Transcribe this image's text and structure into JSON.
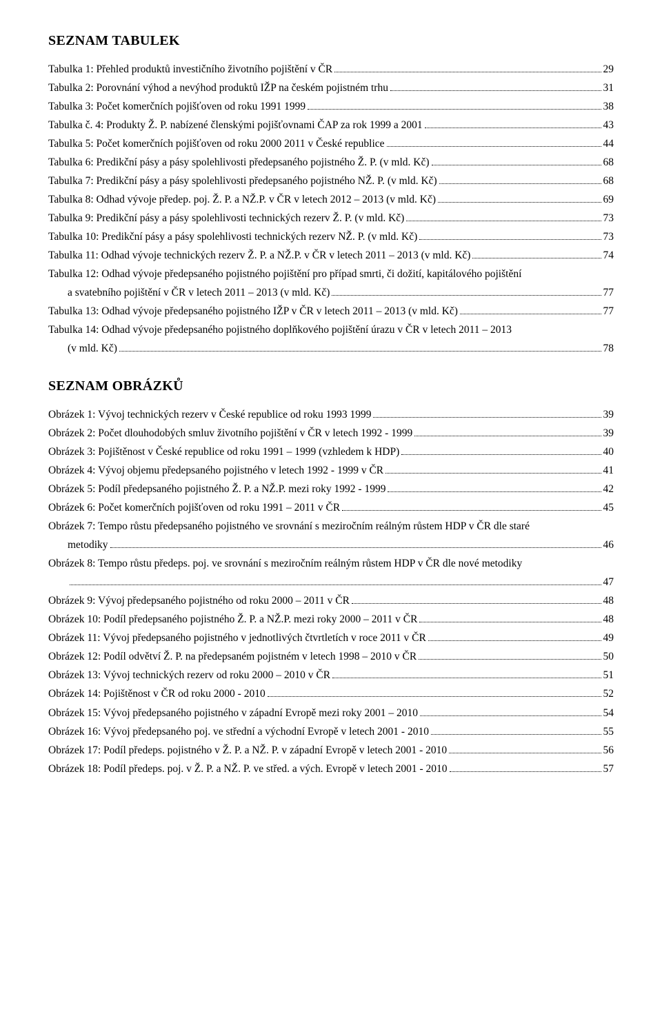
{
  "sections": {
    "tables": {
      "heading_first": "S",
      "heading_rest": "EZNAM TABULEK",
      "entries": [
        {
          "label": "Tabulka 1: Přehled produktů investičního životního pojištění v ČR",
          "page": "29"
        },
        {
          "label": "Tabulka 2: Porovnání výhod a nevýhod produktů IŽP na českém pojistném trhu",
          "page": "31"
        },
        {
          "label": "Tabulka 3: Počet komerčních pojišťoven od roku 1991 1999",
          "page": "38"
        },
        {
          "label": "Tabulka č. 4: Produkty Ž. P. nabízené členskými pojišťovnami ČAP za rok 1999 a 2001",
          "page": "43"
        },
        {
          "label": "Tabulka 5: Počet komerčních pojišťoven od roku 2000 2011 v České republice",
          "page": "44"
        },
        {
          "label": "Tabulka 6: Predikční pásy a pásy spolehlivosti předepsaného pojistného Ž. P. (v mld. Kč)",
          "page": "68"
        },
        {
          "label": "Tabulka 7: Predikční pásy a pásy spolehlivosti předepsaného pojistného NŽ. P. (v mld. Kč)",
          "page": "68"
        },
        {
          "label": "Tabulka 8: Odhad vývoje předep. poj. Ž. P. a NŽ.P. v ČR v letech 2012 – 2013 (v mld. Kč)",
          "page": "69"
        },
        {
          "label": "Tabulka 9: Predikční pásy a pásy spolehlivosti technických rezerv Ž. P. (v mld. Kč)",
          "page": "73"
        },
        {
          "label": "Tabulka 10: Predikční pásy a pásy spolehlivosti technických rezerv NŽ. P. (v mld. Kč)",
          "page": "73"
        },
        {
          "label": "Tabulka 11: Odhad vývoje technických rezerv Ž. P. a NŽ.P. v ČR v letech 2011 – 2013 (v mld. Kč)",
          "page": "74"
        },
        {
          "label_line1": "Tabulka 12: Odhad vývoje předepsaného pojistného pojištění pro případ smrti, či dožití, kapitálového pojištění",
          "label_line2": "a svatebního pojištění v ČR v letech 2011 – 2013 (v mld. Kč)",
          "page": "77",
          "multiline": true
        },
        {
          "label": "Tabulka 13: Odhad vývoje předepsaného pojistného IŽP v ČR v letech 2011 – 2013 (v mld. Kč)",
          "page": "77"
        },
        {
          "label_line1": "Tabulka 14: Odhad vývoje předepsaného pojistného doplňkového pojištění úrazu v ČR  v letech 2011 – 2013",
          "label_line2": "(v mld. Kč)",
          "page": "78",
          "multiline": true
        }
      ]
    },
    "figures": {
      "heading_first": "S",
      "heading_rest": "EZNAM OBRÁZKŮ",
      "entries": [
        {
          "label": "Obrázek 1: Vývoj technických rezerv v České republice od roku 1993 1999",
          "page": "39"
        },
        {
          "label": "Obrázek 2: Počet dlouhodobých smluv životního pojištění v ČR v letech 1992 - 1999",
          "page": "39"
        },
        {
          "label": "Obrázek 3: Pojištěnost v České republice od roku 1991 – 1999 (vzhledem k HDP)",
          "page": "40"
        },
        {
          "label": "Obrázek 4: Vývoj objemu předepsaného pojistného v letech 1992 - 1999 v ČR",
          "page": "41"
        },
        {
          "label": "Obrázek 5: Podíl předepsaného pojistného Ž. P. a NŽ.P. mezi roky 1992 - 1999",
          "page": "42"
        },
        {
          "label": "Obrázek 6: Počet komerčních pojišťoven od roku 1991 – 2011 v ČR",
          "page": "45"
        },
        {
          "label_line1": "Obrázek 7: Tempo růstu předepsaného pojistného ve srovnání s meziročním reálným růstem HDP v ČR dle staré",
          "label_line2": "metodiky",
          "page": "46",
          "multiline": true
        },
        {
          "label_line1": "Obrázek 8: Tempo růstu předeps. poj. ve srovnání s meziročním reálným růstem HDP v ČR dle nové metodiky",
          "label_line2": "",
          "page": "47",
          "multiline": true
        },
        {
          "label": "Obrázek 9: Vývoj předepsaného pojistného od roku 2000 – 2011 v ČR",
          "page": "48"
        },
        {
          "label": "Obrázek 10: Podíl předepsaného pojistného Ž. P. a NŽ.P. mezi roky 2000 – 2011 v ČR",
          "page": "48"
        },
        {
          "label": "Obrázek 11: Vývoj předepsaného pojistného v jednotlivých čtvrtletích v roce 2011 v ČR",
          "page": "49"
        },
        {
          "label": "Obrázek 12: Podíl odvětví Ž. P. na předepsaném pojistném v letech 1998 – 2010 v ČR",
          "page": "50"
        },
        {
          "label": "Obrázek 13: Vývoj technických rezerv od roku 2000 – 2010 v ČR",
          "page": "51"
        },
        {
          "label": "Obrázek 14: Pojištěnost v ČR od roku 2000 - 2010",
          "page": "52"
        },
        {
          "label": "Obrázek 15: Vývoj předepsaného pojistného v západní Evropě mezi roky 2001 – 2010",
          "page": "54"
        },
        {
          "label": "Obrázek 16: Vývoj předepsaného poj. ve střední a východní Evropě v letech 2001 - 2010",
          "page": "55"
        },
        {
          "label": "Obrázek 17: Podíl předeps. pojistného v Ž. P. a NŽ. P. v západní Evropě v letech 2001 - 2010",
          "page": "56"
        },
        {
          "label": "Obrázek 18: Podíl předeps. poj. v Ž. P. a NŽ. P. ve střed. a vých. Evropě v letech 2001 - 2010",
          "page": "57"
        }
      ]
    }
  }
}
